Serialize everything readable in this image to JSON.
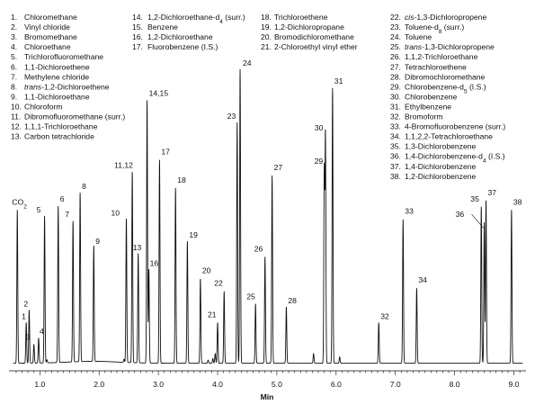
{
  "chart_data": {
    "type": "line",
    "title": "",
    "xlabel": "Min",
    "ylabel": "",
    "xlim": [
      0.5,
      9.15
    ],
    "ylim": [
      0,
      1
    ],
    "grid": false,
    "legend_position": "top",
    "x_ticks": [
      1.0,
      2.0,
      3.0,
      4.0,
      5.0,
      6.0,
      7.0,
      8.0,
      9.0
    ],
    "x_tick_labels": [
      "1.0",
      "2.0",
      "3.0",
      "4.0",
      "5.0",
      "6.0",
      "7.0",
      "8.0",
      "9.0"
    ],
    "baseline": 0.02,
    "peaks": [
      {
        "label": "CO2",
        "x": 0.62,
        "y": 0.51
      },
      {
        "label": "1",
        "x": 0.77,
        "y": 0.15
      },
      {
        "label": "2",
        "x": 0.82,
        "y": 0.19
      },
      {
        "label": "3",
        "x": 0.9,
        "y": 0.08
      },
      {
        "label": "4",
        "x": 0.98,
        "y": 0.1
      },
      {
        "label": "5",
        "x": 1.08,
        "y": 0.49
      },
      {
        "label": "6",
        "x": 1.31,
        "y": 0.52
      },
      {
        "label": "7",
        "x": 1.56,
        "y": 0.47
      },
      {
        "label": "8",
        "x": 1.68,
        "y": 0.56
      },
      {
        "label": "9",
        "x": 1.91,
        "y": 0.39
      },
      {
        "label": "10",
        "x": 2.46,
        "y": 0.48
      },
      {
        "label": "11,12",
        "x": 2.56,
        "y": 0.63
      },
      {
        "label": "13",
        "x": 2.66,
        "y": 0.37
      },
      {
        "label": "14,15",
        "x": 2.81,
        "y": 0.86
      },
      {
        "label": "16",
        "x": 2.84,
        "y": 0.32
      },
      {
        "label": "17",
        "x": 3.02,
        "y": 0.67
      },
      {
        "label": "18",
        "x": 3.29,
        "y": 0.58
      },
      {
        "label": "19",
        "x": 3.49,
        "y": 0.41
      },
      {
        "label": "20",
        "x": 3.71,
        "y": 0.29
      },
      {
        "label": "21",
        "x": 4.0,
        "y": 0.15
      },
      {
        "label": "22",
        "x": 4.11,
        "y": 0.25
      },
      {
        "label": "23",
        "x": 4.33,
        "y": 0.79
      },
      {
        "label": "24",
        "x": 4.38,
        "y": 0.96
      },
      {
        "label": "25",
        "x": 4.64,
        "y": 0.21
      },
      {
        "label": "26",
        "x": 4.8,
        "y": 0.36
      },
      {
        "label": "27",
        "x": 4.92,
        "y": 0.62
      },
      {
        "label": "28",
        "x": 5.16,
        "y": 0.2
      },
      {
        "label": "29",
        "x": 5.8,
        "y": 0.64
      },
      {
        "label": "30",
        "x": 5.82,
        "y": 0.75
      },
      {
        "label": "31",
        "x": 5.94,
        "y": 0.9
      },
      {
        "label": "32",
        "x": 6.72,
        "y": 0.15
      },
      {
        "label": "33",
        "x": 7.13,
        "y": 0.48
      },
      {
        "label": "34",
        "x": 7.36,
        "y": 0.26
      },
      {
        "label": "35",
        "x": 8.45,
        "y": 0.52
      },
      {
        "label": "36",
        "x": 8.5,
        "y": 0.47
      },
      {
        "label": "37",
        "x": 8.53,
        "y": 0.54
      },
      {
        "label": "38",
        "x": 8.96,
        "y": 0.51
      }
    ],
    "minor_peaks": [
      {
        "x": 1.12,
        "y": 0.03
      },
      {
        "x": 2.42,
        "y": 0.03
      },
      {
        "x": 3.84,
        "y": 0.03
      },
      {
        "x": 3.92,
        "y": 0.035
      },
      {
        "x": 3.96,
        "y": 0.05
      },
      {
        "x": 5.62,
        "y": 0.05
      },
      {
        "x": 6.06,
        "y": 0.04
      },
      {
        "x": 8.03,
        "y": 0.02
      }
    ],
    "legend_columns": [
      [
        {
          "number": "1.",
          "name": "Chloromethane"
        },
        {
          "number": "2.",
          "name": "Vinyl chloride"
        },
        {
          "number": "3.",
          "name": "Bromomethane"
        },
        {
          "number": "4.",
          "name": "Chloroethane"
        },
        {
          "number": "5.",
          "name": "Trichlorofluoromethane"
        },
        {
          "number": "6.",
          "name": "1,1-Dichloroethene"
        },
        {
          "number": "7.",
          "name": "Methylene chloride"
        },
        {
          "number": "8.",
          "name": "trans-1,2-Dichloroethene"
        },
        {
          "number": "9.",
          "name": "1,1-Dichloroethane"
        },
        {
          "number": "10.",
          "name": "Chloroform"
        },
        {
          "number": "11.",
          "name": "Dibromofluoromethane (surr.)"
        },
        {
          "number": "12.",
          "name": "1,1,1-Trichloroethane"
        },
        {
          "number": "13.",
          "name": "Carbon tetrachloride"
        }
      ],
      [
        {
          "number": "14.",
          "name": "1,2-Dichloroethane-d4 (surr.)"
        },
        {
          "number": "15.",
          "name": "Benzene"
        },
        {
          "number": "16.",
          "name": "1,2-Dichloroethane"
        },
        {
          "number": "17.",
          "name": "Fluorobenzene (I.S.)"
        }
      ],
      [
        {
          "number": "18.",
          "name": "Trichloroethene"
        },
        {
          "number": "19.",
          "name": "1,2-Dichloropropane"
        },
        {
          "number": "20.",
          "name": "Bromodichloromethane"
        },
        {
          "number": "21.",
          "name": "2-Chloroethyl vinyl ether"
        }
      ],
      [
        {
          "number": "22.",
          "name": "cis-1,3-Dichloropropene"
        },
        {
          "number": "23.",
          "name": "Toluene-d8 (surr.)"
        },
        {
          "number": "24.",
          "name": "Toluene"
        },
        {
          "number": "25.",
          "name": "trans-1,3-Dichloropropene"
        },
        {
          "number": "26.",
          "name": "1,1,2-Trichloroethane"
        },
        {
          "number": "27.",
          "name": "Tetrachloroethene"
        },
        {
          "number": "28.",
          "name": "Dibromochloromethane"
        },
        {
          "number": "29.",
          "name": "Chlorobenzene-d5 (I.S.)"
        },
        {
          "number": "30.",
          "name": "Chlorobenzene"
        },
        {
          "number": "31.",
          "name": "Ethylbenzene"
        },
        {
          "number": "32.",
          "name": "Bromoform"
        },
        {
          "number": "33.",
          "name": "4-Bromofluorobenzene (surr.)"
        },
        {
          "number": "34.",
          "name": "1,1,2,2-Tetrachloroethane"
        },
        {
          "number": "35.",
          "name": "1,3-Dichlorobenzene"
        },
        {
          "number": "36.",
          "name": "1,4-Dichlorobenzene-d4 (I.S.)"
        },
        {
          "number": "37.",
          "name": "1,4-Dichlorobenzene"
        },
        {
          "number": "38.",
          "name": "1,2-Dichlorobenzene"
        }
      ]
    ]
  }
}
